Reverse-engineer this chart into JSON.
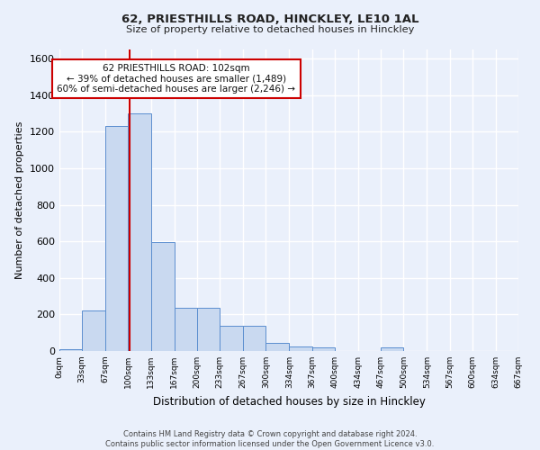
{
  "title1": "62, PRIESTHILLS ROAD, HINCKLEY, LE10 1AL",
  "title2": "Size of property relative to detached houses in Hinckley",
  "xlabel": "Distribution of detached houses by size in Hinckley",
  "ylabel": "Number of detached properties",
  "bar_edges": [
    0,
    33,
    67,
    100,
    133,
    167,
    200,
    233,
    267,
    300,
    334,
    367,
    400,
    434,
    467,
    500,
    534,
    567,
    600,
    634,
    667
  ],
  "bar_heights": [
    10,
    220,
    1230,
    1300,
    595,
    235,
    235,
    140,
    140,
    45,
    25,
    20,
    0,
    0,
    20,
    0,
    0,
    0,
    0,
    0
  ],
  "bar_color": "#c9d9f0",
  "bar_edge_color": "#5b8ecf",
  "property_size": 102,
  "vline_color": "#cc0000",
  "annotation_text": "62 PRIESTHILLS ROAD: 102sqm\n← 39% of detached houses are smaller (1,489)\n60% of semi-detached houses are larger (2,246) →",
  "annotation_box_edgecolor": "#cc0000",
  "annotation_box_facecolor": "#ffffff",
  "ylim": [
    0,
    1650
  ],
  "yticks": [
    0,
    200,
    400,
    600,
    800,
    1000,
    1200,
    1400,
    1600
  ],
  "tick_labels": [
    "0sqm",
    "33sqm",
    "67sqm",
    "100sqm",
    "133sqm",
    "167sqm",
    "200sqm",
    "233sqm",
    "267sqm",
    "300sqm",
    "334sqm",
    "367sqm",
    "400sqm",
    "434sqm",
    "467sqm",
    "500sqm",
    "534sqm",
    "567sqm",
    "600sqm",
    "634sqm",
    "667sqm"
  ],
  "footnote": "Contains HM Land Registry data © Crown copyright and database right 2024.\nContains public sector information licensed under the Open Government Licence v3.0.",
  "bg_color": "#eaf0fb",
  "grid_color": "#ffffff"
}
